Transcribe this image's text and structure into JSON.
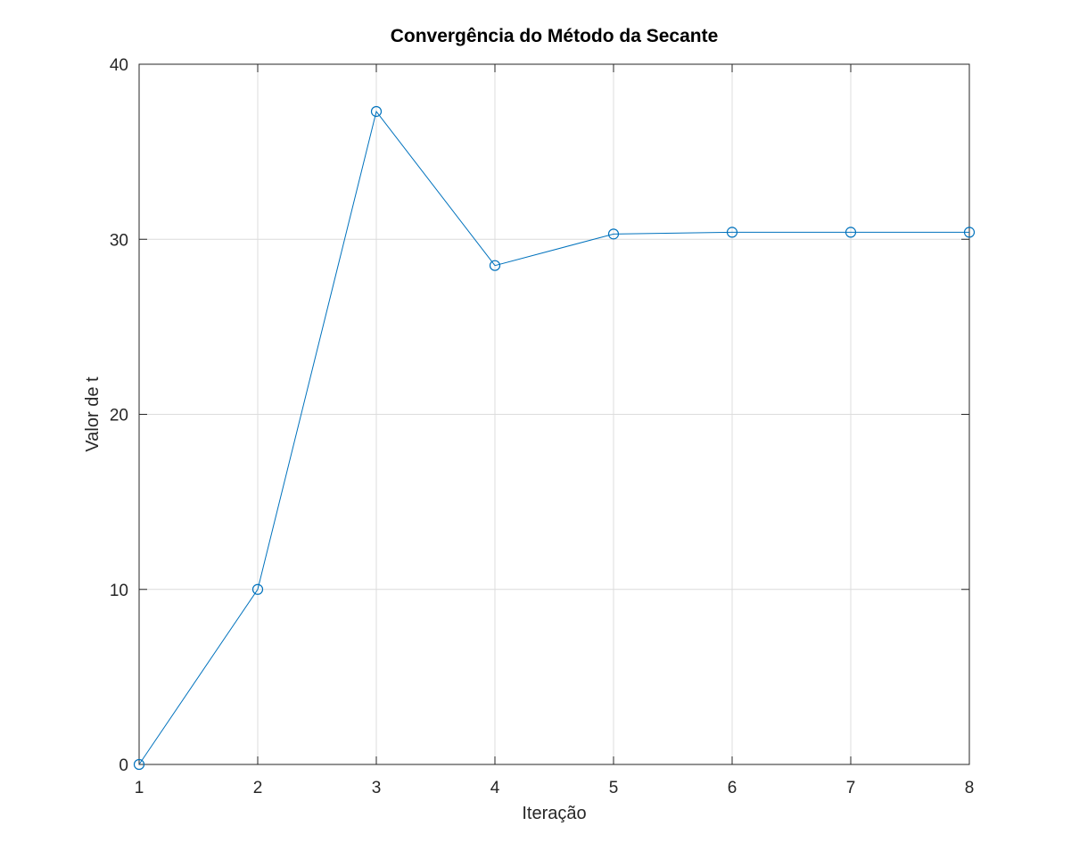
{
  "chart_data": {
    "type": "line",
    "title": "Convergência do Método da Secante",
    "xlabel": "Iteração",
    "ylabel": "Valor de t",
    "xlim": [
      1,
      8
    ],
    "ylim": [
      0,
      40
    ],
    "xticks": [
      1,
      2,
      3,
      4,
      5,
      6,
      7,
      8
    ],
    "yticks": [
      0,
      10,
      20,
      30,
      40
    ],
    "grid": true,
    "marker": "circle",
    "series_color": "#0072BD",
    "x": [
      1,
      2,
      3,
      4,
      5,
      6,
      7,
      8
    ],
    "series": [
      {
        "values": [
          0,
          10,
          37.3,
          28.5,
          30.3,
          30.4,
          30.4,
          30.4
        ]
      }
    ]
  }
}
